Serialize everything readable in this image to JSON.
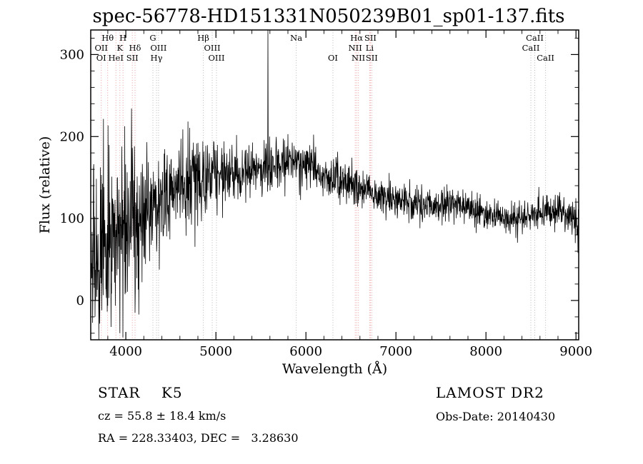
{
  "chart_data": {
    "type": "line",
    "title": "spec-56778-HD151331N050239B01_sp01-137.fits",
    "xlabel": "Wavelength (Å)",
    "ylabel": "Flux (relative)",
    "xlim": [
      3610,
      9030
    ],
    "ylim": [
      -48,
      330
    ],
    "x_ticks": [
      4000,
      5000,
      6000,
      7000,
      8000,
      9000
    ],
    "y_ticks": [
      0,
      100,
      200,
      300
    ],
    "x_minor_step": 200,
    "y_minor_step": 20,
    "grid": false,
    "legend": "none",
    "series_name": "flux",
    "line_color": "#000000",
    "colors": {
      "line_red": "#eda0a0",
      "line_gray": "#b8b8b8",
      "label": "#8b2020"
    },
    "continuum": {
      "x": [
        3610,
        3700,
        3800,
        3900,
        4000,
        4100,
        4200,
        4300,
        4400,
        4500,
        4600,
        4700,
        4800,
        4900,
        5000,
        5100,
        5200,
        5300,
        5400,
        5500,
        5600,
        5700,
        5800,
        5900,
        6000,
        6100,
        6200,
        6300,
        6400,
        6500,
        6600,
        6700,
        6800,
        6900,
        7000,
        7100,
        7200,
        7300,
        7400,
        7500,
        7600,
        7700,
        7800,
        7900,
        8000,
        8100,
        8200,
        8300,
        8400,
        8500,
        8600,
        8700,
        8800,
        8900,
        9000,
        9030
      ],
      "y": [
        55,
        65,
        75,
        85,
        95,
        105,
        112,
        118,
        126,
        132,
        140,
        146,
        150,
        152,
        153,
        152,
        153,
        155,
        158,
        160,
        164,
        168,
        171,
        170,
        166,
        160,
        154,
        149,
        146,
        142,
        137,
        133,
        129,
        126,
        123,
        120,
        118,
        116,
        114,
        115,
        120,
        118,
        113,
        108,
        105,
        102,
        100,
        98,
        100,
        103,
        106,
        108,
        110,
        106,
        96,
        80
      ]
    },
    "noise_sigma": {
      "x": [
        3610,
        3800,
        3900,
        4000,
        4200,
        4400,
        4600,
        4800,
        5000,
        5200,
        5400,
        5600,
        5800,
        6000,
        6300,
        6600,
        7000,
        7400,
        7800,
        8200,
        8600,
        9030
      ],
      "y": [
        50,
        55,
        50,
        45,
        40,
        32,
        28,
        26,
        22,
        20,
        18,
        16,
        15,
        14,
        13,
        12,
        11,
        10,
        9,
        9,
        10,
        13
      ]
    },
    "spikes": [
      {
        "x": 5577,
        "y": 400
      },
      {
        "x": 3934,
        "y": -40
      },
      {
        "x": 3968,
        "y": -45
      },
      {
        "x": 4102,
        "y": -15
      }
    ],
    "noise_seed": 20140430,
    "sample_step": 3,
    "spectral_lines": [
      {
        "wl": 3727,
        "label": "OII",
        "row": 2,
        "color": "red"
      },
      {
        "wl": 3727,
        "label": "OI",
        "row": 3,
        "color": "red",
        "line": false
      },
      {
        "wl": 3798,
        "label": "Hθ",
        "row": 1,
        "color": "red"
      },
      {
        "wl": 3889,
        "label": "HeI",
        "row": 3,
        "color": "red"
      },
      {
        "wl": 3934,
        "label": "K",
        "row": 2,
        "color": "red"
      },
      {
        "wl": 3969,
        "label": "H",
        "row": 1,
        "color": "red"
      },
      {
        "wl": 4072,
        "label": "SII",
        "row": 3,
        "color": "red"
      },
      {
        "wl": 4102,
        "label": "Hδ",
        "row": 2,
        "color": "red"
      },
      {
        "wl": 4300,
        "label": "G",
        "row": 1,
        "color": "gray"
      },
      {
        "wl": 4340,
        "label": "Hγ",
        "row": 3,
        "color": "gray"
      },
      {
        "wl": 4363,
        "label": "OIII",
        "row": 2,
        "color": "gray"
      },
      {
        "wl": 4861,
        "label": "Hβ",
        "row": 1,
        "color": "gray"
      },
      {
        "wl": 4959,
        "label": "OIII",
        "row": 2,
        "color": "gray"
      },
      {
        "wl": 5007,
        "label": "OIII",
        "row": 3,
        "color": "gray"
      },
      {
        "wl": 5892,
        "label": "Na",
        "row": 1,
        "color": "gray"
      },
      {
        "wl": 6300,
        "label": "OI",
        "row": 3,
        "color": "gray"
      },
      {
        "wl": 6548,
        "label": "NII",
        "row": 2,
        "color": "red"
      },
      {
        "wl": 6563,
        "label": "Hα",
        "row": 1,
        "color": "red"
      },
      {
        "wl": 6583,
        "label": "NII",
        "row": 3,
        "color": "red"
      },
      {
        "wl": 6708,
        "label": "Li",
        "row": 2,
        "color": "red"
      },
      {
        "wl": 6717,
        "label": "SII",
        "row": 1,
        "color": "red"
      },
      {
        "wl": 6731,
        "label": "SII",
        "row": 3,
        "color": "red"
      },
      {
        "wl": 8498,
        "label": "CaII",
        "row": 2,
        "color": "gray"
      },
      {
        "wl": 8542,
        "label": "CaII",
        "row": 1,
        "color": "gray"
      },
      {
        "wl": 8662,
        "label": "CaII",
        "row": 3,
        "color": "gray"
      }
    ]
  },
  "footer": {
    "star_class": "STAR    K5",
    "survey": "LAMOST DR2",
    "cz": "cz = 55.8 ± 18.4 km/s",
    "obs_date": "Obs-Date: 20140430",
    "radec": "RA = 228.33403, DEC =   3.28630"
  }
}
